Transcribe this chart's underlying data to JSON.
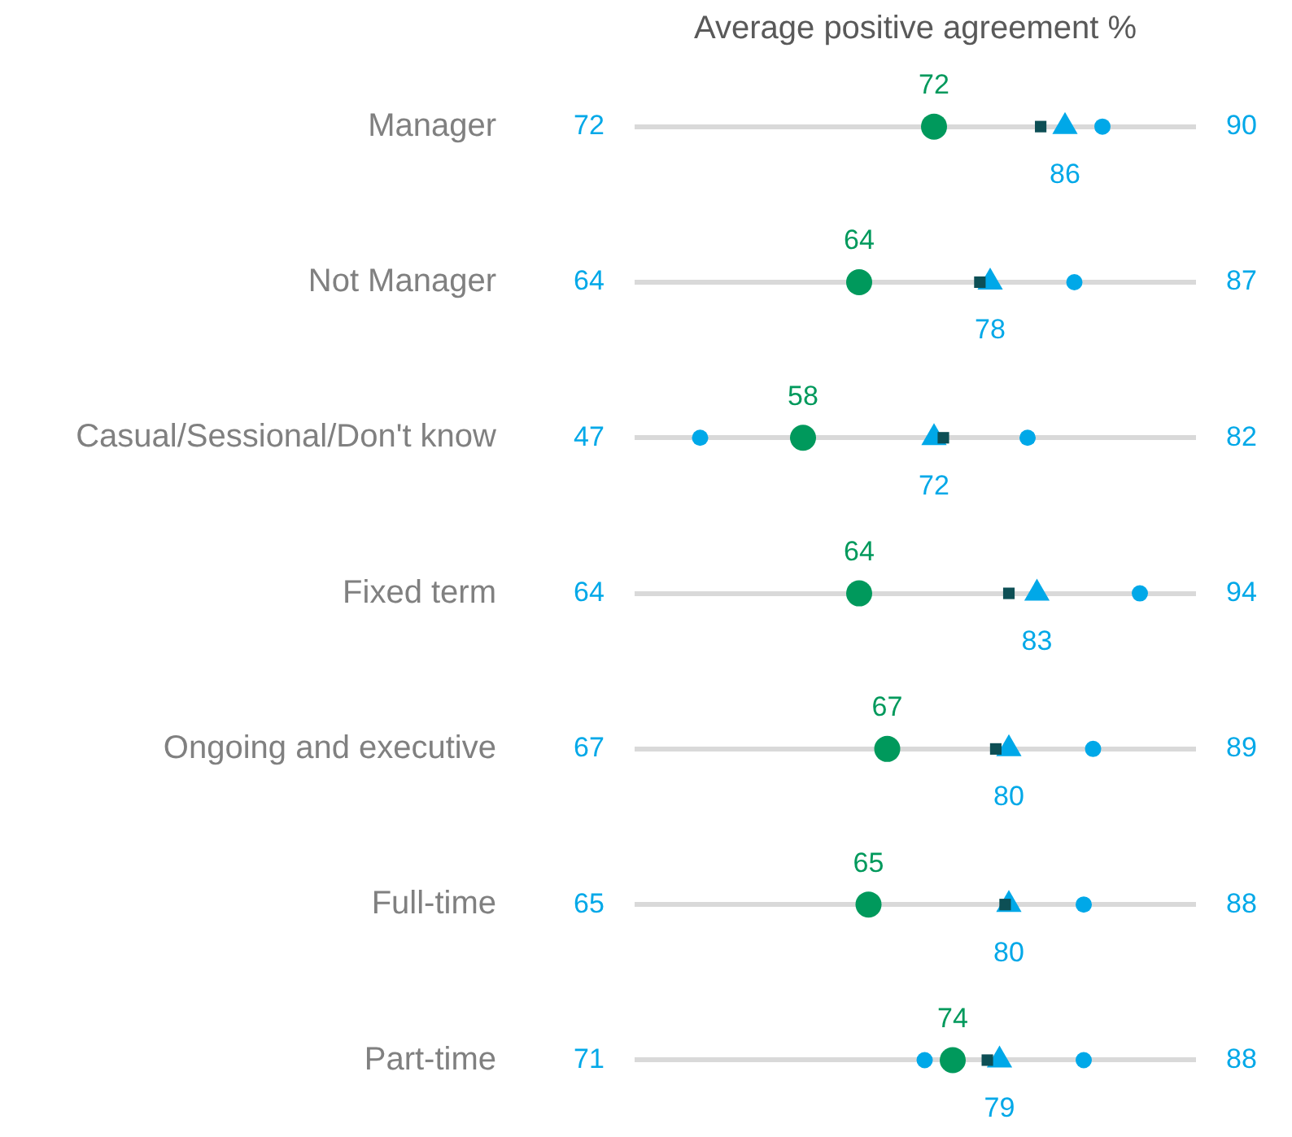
{
  "chart_data": {
    "type": "scatter",
    "orientation": "horizontal",
    "title": "Average positive agreement %",
    "categories": [
      "Manager",
      "Not Manager",
      "Casual/Sessional/Don't know",
      "Fixed term",
      "Ongoing and executive",
      "Full-time",
      "Part-time"
    ],
    "xlim": [
      40,
      100
    ],
    "grid": "y",
    "legend": false,
    "tick_labels": "y",
    "series": [
      {
        "color": "#00a8e8",
        "marker": "circle",
        "values": [
          null,
          null,
          47,
          null,
          null,
          null,
          71
        ],
        "value_labels": [
          "72",
          "64",
          "47",
          "64",
          "67",
          "65",
          "71"
        ]
      },
      {
        "color": "#00a8e8",
        "marker": "circle",
        "values": [
          90,
          87,
          82,
          94,
          89,
          88,
          88
        ],
        "value_labels": [
          "90",
          "87",
          "82",
          "94",
          "89",
          "88",
          "88"
        ]
      },
      {
        "color": "#00a8e8",
        "marker": "triangle",
        "values": [
          86,
          78,
          72,
          83,
          80,
          80,
          79
        ],
        "value_labels": [
          "86",
          "78",
          "72",
          "83",
          "80",
          "80",
          "79"
        ]
      },
      {
        "color": "#0d4f55",
        "marker": "square",
        "values": [
          83.4,
          76.9,
          73,
          80,
          78.6,
          79.6,
          77.7
        ]
      },
      {
        "color": "#00995c",
        "marker": "circle",
        "values": [
          72,
          64,
          58,
          64,
          67,
          65,
          74
        ],
        "value_labels": [
          "72",
          "64",
          "58",
          "64",
          "67",
          "65",
          "74"
        ]
      }
    ]
  }
}
